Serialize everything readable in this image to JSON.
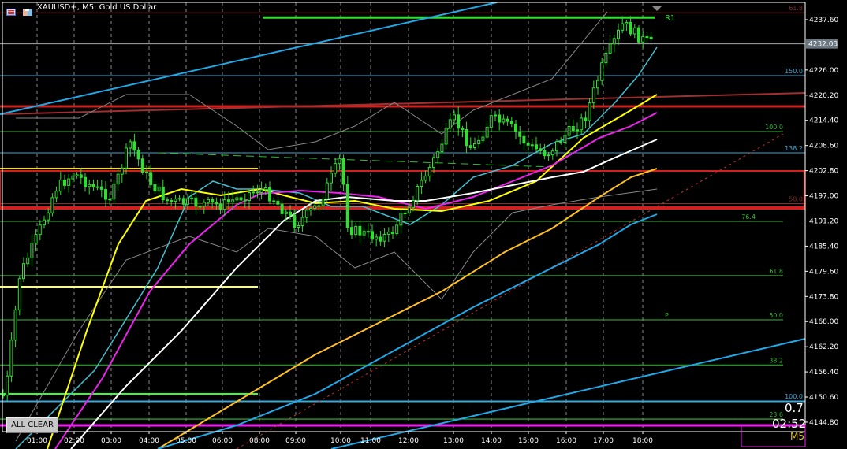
{
  "header": {
    "title": "XAUUSD+, M5:  Gold US Dollar",
    "icons": [
      "chart-list-icon",
      "save-template-icon"
    ]
  },
  "price_axis": {
    "labels": [
      "4237.60",
      "4226.00",
      "4220.20",
      "4214.40",
      "4208.60",
      "4202.80",
      "4197.00",
      "4191.20",
      "4185.40",
      "4179.60",
      "4173.80",
      "4168.00",
      "4162.20",
      "4156.40",
      "4150.60",
      "4144.80"
    ],
    "current_price": "4232.03"
  },
  "time_axis": {
    "labels": [
      "01:00",
      "02:00",
      "03:00",
      "04:00",
      "05:00",
      "06:00",
      "08:00",
      "09:00",
      "10:00",
      "11:00",
      "12:00",
      "13:00",
      "14:00",
      "15:00",
      "16:00",
      "17:00",
      "18:00"
    ]
  },
  "levels": [
    {
      "label": "61.8",
      "price": 4239.2,
      "color": "#8b2a2a"
    },
    {
      "label": "R1",
      "price": 4238.1,
      "color": "#33dd33"
    },
    {
      "label": "150.0",
      "price": 4224.7,
      "color": "#3aa8d8"
    },
    {
      "label": "100.0",
      "price": 4211.8,
      "color": "#33bb33"
    },
    {
      "label": "138.2",
      "price": 4206.9,
      "color": "#3aa8d8"
    },
    {
      "label": "50.0",
      "price": 4195.2,
      "color": "#8b2a2a"
    },
    {
      "label": "76.4",
      "price": 4191.1,
      "color": "#33bb33"
    },
    {
      "label": "61.8",
      "price": 4178.6,
      "color": "#33bb33"
    },
    {
      "label": "50.0",
      "price": 4168.4,
      "color": "#33bb33"
    },
    {
      "label": "P",
      "price": 4168.4,
      "color": "#33bb33"
    },
    {
      "label": "38.2",
      "price": 4158.0,
      "color": "#33bb33"
    },
    {
      "label": "100.0",
      "price": 4149.7,
      "color": "#3aa8d8"
    },
    {
      "label": "23.6",
      "price": 4145.5,
      "color": "#33bb33"
    }
  ],
  "chart_data": {
    "type": "candlestick",
    "symbol": "XAUUSD+",
    "timeframe": "M5",
    "price_path_approx": [
      [
        "00:05",
        4151
      ],
      [
        "00:30",
        4178.6
      ],
      [
        "01:00",
        4187.7
      ],
      [
        "01:30",
        4198.6
      ],
      [
        "02:00",
        4202.2
      ],
      [
        "02:30",
        4199
      ],
      [
        "03:00",
        4196.7
      ],
      [
        "03:30",
        4209.4
      ],
      [
        "04:00",
        4200.4
      ],
      [
        "04:30",
        4195.8
      ],
      [
        "05:00",
        4195.3
      ],
      [
        "06:00",
        4194.9
      ],
      [
        "08:00",
        4198.6
      ],
      [
        "08:20",
        4196.8
      ],
      [
        "09:00",
        4190.4
      ],
      [
        "09:30",
        4195
      ],
      [
        "10:00",
        4205.8
      ],
      [
        "10:15",
        4189.5
      ],
      [
        "11:00",
        4187.7
      ],
      [
        "11:30",
        4187.7
      ],
      [
        "12:00",
        4195
      ],
      [
        "12:30",
        4204
      ],
      [
        "13:00",
        4214.9
      ],
      [
        "13:30",
        4207.6
      ],
      [
        "14:00",
        4214.9
      ],
      [
        "14:30",
        4213
      ],
      [
        "15:00",
        4208.5
      ],
      [
        "15:30",
        4206.7
      ],
      [
        "16:00",
        4211.2
      ],
      [
        "16:30",
        4214.9
      ],
      [
        "17:00",
        4227.6
      ],
      [
        "17:30",
        4236.7
      ],
      [
        "18:00",
        4233
      ],
      [
        "18:15",
        4232.03
      ]
    ]
  },
  "controls": {
    "all_clear": "ALL CLEAR"
  },
  "info": {
    "spread": "0.7",
    "timer": "02:52",
    "timeframe": "M5"
  },
  "colors": {
    "background": "#000000",
    "bull": "#33dd33",
    "axis": "#ffffff",
    "ma_cyan": "#40c0d0",
    "ma_yellow": "#ffff00",
    "ma_magenta": "#ee22ee",
    "ma_white": "#ffffff",
    "ma_orange": "#ffc020",
    "trend_blue": "#20a8e8",
    "support_red": "#d02020"
  }
}
